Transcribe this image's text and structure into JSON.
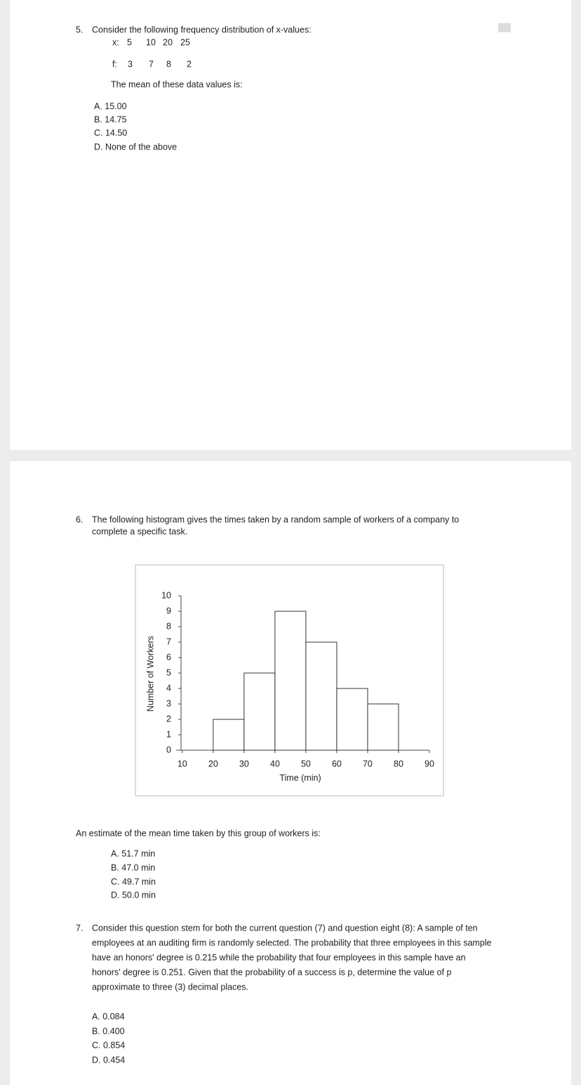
{
  "questions": [
    {
      "number": "5.",
      "stem_lines": [
        "Consider the following frequency distribution of x-values:"
      ],
      "x_row": [
        "x:",
        "5",
        "10",
        "20",
        "25"
      ],
      "f_row": [
        "f:",
        "3",
        "7",
        "8",
        "2"
      ],
      "prompt": "The mean of these data values is:",
      "options": [
        "A. 15.00",
        "B. 14.75",
        "C. 14.50",
        "D. None of the above"
      ]
    },
    {
      "number": "6.",
      "stem_lines": [
        "The following histogram gives the times taken by a random sample of workers of a company to",
        "complete a specific task."
      ],
      "chart": {
        "type": "histogram",
        "bins": [
          20,
          30,
          40,
          50,
          60,
          70,
          80
        ],
        "values": [
          2,
          5,
          9,
          7,
          4,
          3
        ],
        "xlabel": "Time (min)",
        "ylabel": "Number of Workers",
        "xlim": [
          8,
          90
        ],
        "xticks": [
          10,
          20,
          30,
          40,
          50,
          60,
          70,
          80,
          90
        ],
        "ylim": [
          0,
          10
        ],
        "yticks": [
          0,
          1,
          2,
          3,
          4,
          5,
          6,
          7,
          8,
          9,
          10
        ],
        "color": "#ffffff"
      },
      "prompt": "An estimate of the mean time taken by this group of workers is:",
      "options": [
        "A. 51.7 min",
        "B. 47.0 min",
        "C. 49.7 min",
        "D. 50.0 min"
      ]
    },
    {
      "number": "7.",
      "stem_lines": [
        "Consider this question stem for both the current question (7) and question eight (8): A sample of ten",
        "employees at an auditing firm is randomly selected. The probability that three employees in this sample",
        "have an honors' degree is 0.215 while the probability that four employees in this sample have an",
        "honors' degree is 0.251. Given that the probability of a success is p, determine the value of p",
        "approximate to three (3) decimal places."
      ],
      "options": [
        "A. 0.084",
        "B. 0.400",
        "C. 0.854",
        "D. 0.454"
      ]
    }
  ]
}
